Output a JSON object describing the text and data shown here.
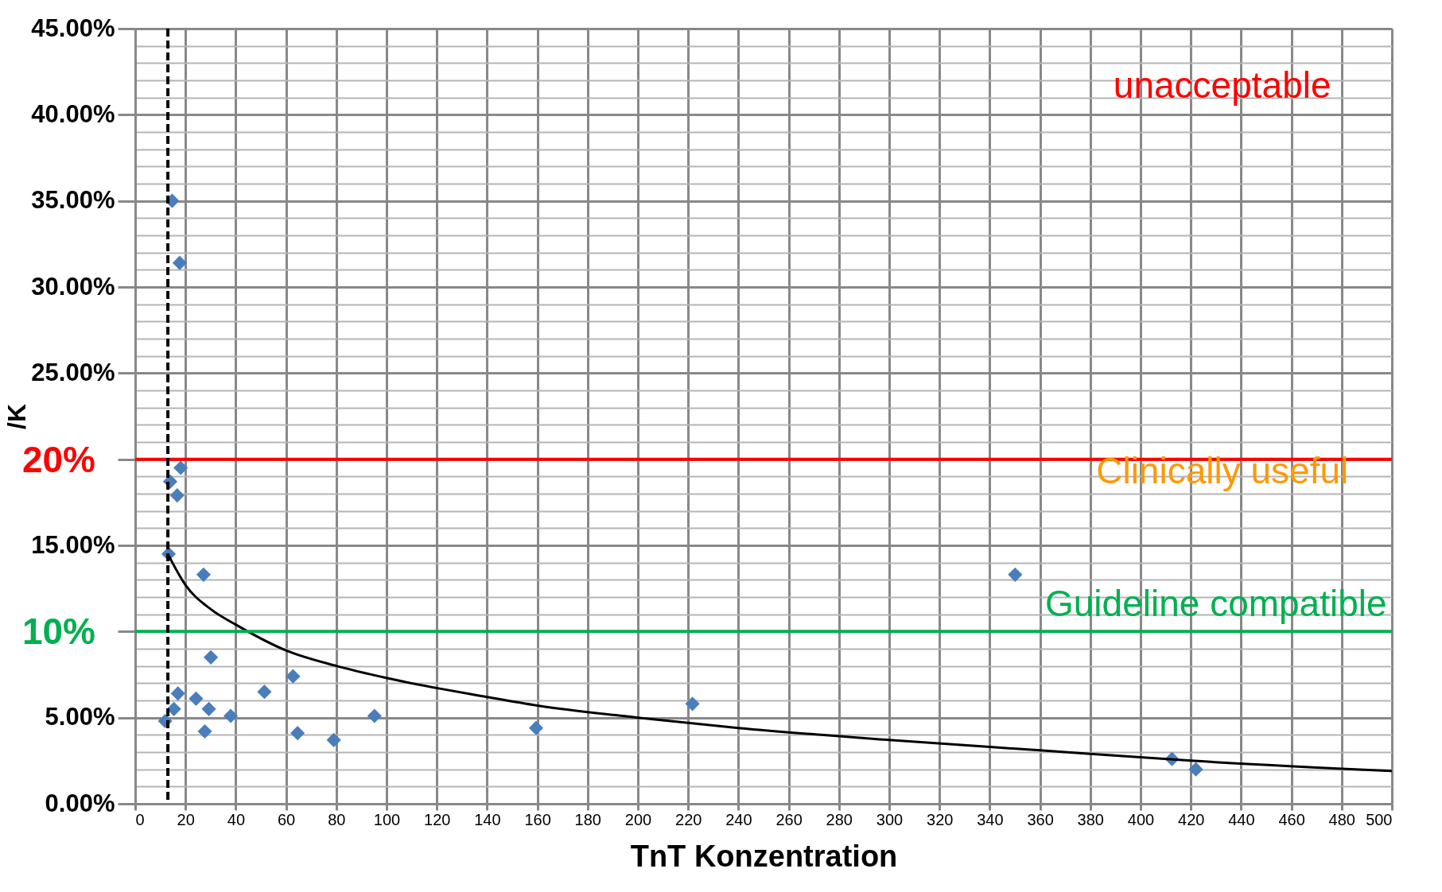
{
  "chart_data": {
    "type": "scatter",
    "xlabel": "TnT Konzentration",
    "ylabel": "/K",
    "xlim": [
      0,
      500
    ],
    "xticks": [
      0,
      20,
      40,
      60,
      80,
      100,
      120,
      140,
      160,
      180,
      200,
      220,
      240,
      260,
      280,
      300,
      320,
      340,
      360,
      380,
      400,
      420,
      440,
      460,
      480,
      500
    ],
    "ylim": [
      0,
      45
    ],
    "yticks": [
      {
        "value": 0,
        "label": "0.00%"
      },
      {
        "value": 1,
        "label": null
      },
      {
        "value": 2,
        "label": null
      },
      {
        "value": 3,
        "label": null
      },
      {
        "value": 4,
        "label": null
      },
      {
        "value": 5,
        "label": "5.00%"
      },
      {
        "value": 6,
        "label": null
      },
      {
        "value": 7,
        "label": null
      },
      {
        "value": 8,
        "label": null
      },
      {
        "value": 9,
        "label": null
      },
      {
        "value": 10,
        "label": null
      },
      {
        "value": 11,
        "label": null
      },
      {
        "value": 12,
        "label": null
      },
      {
        "value": 13,
        "label": null
      },
      {
        "value": 14,
        "label": null
      },
      {
        "value": 15,
        "label": "15.00%"
      },
      {
        "value": 16,
        "label": null
      },
      {
        "value": 17,
        "label": null
      },
      {
        "value": 18,
        "label": null
      },
      {
        "value": 19,
        "label": null
      },
      {
        "value": 20,
        "label": null
      },
      {
        "value": 21,
        "label": null
      },
      {
        "value": 22,
        "label": null
      },
      {
        "value": 23,
        "label": null
      },
      {
        "value": 24,
        "label": null
      },
      {
        "value": 25,
        "label": "25.00%"
      },
      {
        "value": 26,
        "label": null
      },
      {
        "value": 27,
        "label": null
      },
      {
        "value": 28,
        "label": null
      },
      {
        "value": 29,
        "label": null
      },
      {
        "value": 30,
        "label": "30.00%"
      },
      {
        "value": 31,
        "label": null
      },
      {
        "value": 32,
        "label": null
      },
      {
        "value": 33,
        "label": null
      },
      {
        "value": 34,
        "label": null
      },
      {
        "value": 35,
        "label": "35.00%"
      },
      {
        "value": 36,
        "label": null
      },
      {
        "value": 37,
        "label": null
      },
      {
        "value": 38,
        "label": null
      },
      {
        "value": 39,
        "label": null
      },
      {
        "value": 40,
        "label": "40.00%"
      },
      {
        "value": 41,
        "label": null
      },
      {
        "value": 42,
        "label": null
      },
      {
        "value": 43,
        "label": null
      },
      {
        "value": 44,
        "label": null
      },
      {
        "value": 45,
        "label": "45.00%"
      }
    ],
    "grid": true,
    "series": [
      {
        "color": "#4a7ebb",
        "marker": "diamond",
        "x": [
          11.9,
          15.4,
          17,
          13.3,
          13.9,
          16.7,
          18.1,
          14.7,
          17.7,
          24.2,
          29.3,
          27.7,
          27.2,
          30.1,
          38,
          51.4,
          62.8,
          64.6,
          79,
          95.2,
          159.5,
          221.7,
          350.1,
          412.5,
          422
        ],
        "values": [
          4.8,
          5.5,
          6.4,
          14.5,
          18.7,
          17.9,
          19.5,
          35,
          31.4,
          6.1,
          5.5,
          4.2,
          13.3,
          8.5,
          5.1,
          6.5,
          7.4,
          4.1,
          3.7,
          5.1,
          4.4,
          5.8,
          13.3,
          2.6,
          2.0
        ]
      },
      {
        "type": "line",
        "color": "#000000",
        "marker": "none",
        "line_style": "solid",
        "x": [
          13,
          20,
          30,
          40,
          60,
          80,
          100,
          140,
          160,
          200,
          240,
          300,
          360,
          420,
          500
        ],
        "values": [
          14.5,
          12.7,
          11.3,
          10.4,
          8.9,
          8.0,
          7.3,
          6.2,
          5.7,
          5.0,
          4.4,
          3.7,
          3.1,
          2.5,
          1.9
        ]
      }
    ],
    "ref_lines": [
      {
        "axis": "y",
        "value": 20,
        "label": "20%",
        "color": "#ff0000",
        "line_style": "solid"
      },
      {
        "axis": "y",
        "value": 10,
        "label": "10%",
        "color": "#00b050",
        "line_style": "solid"
      },
      {
        "axis": "x",
        "value": 13,
        "color": "#000000",
        "line_style": "dashed"
      }
    ],
    "annotations": [
      "unacceptable",
      "Clinically useful",
      "Guideline compatible"
    ]
  }
}
